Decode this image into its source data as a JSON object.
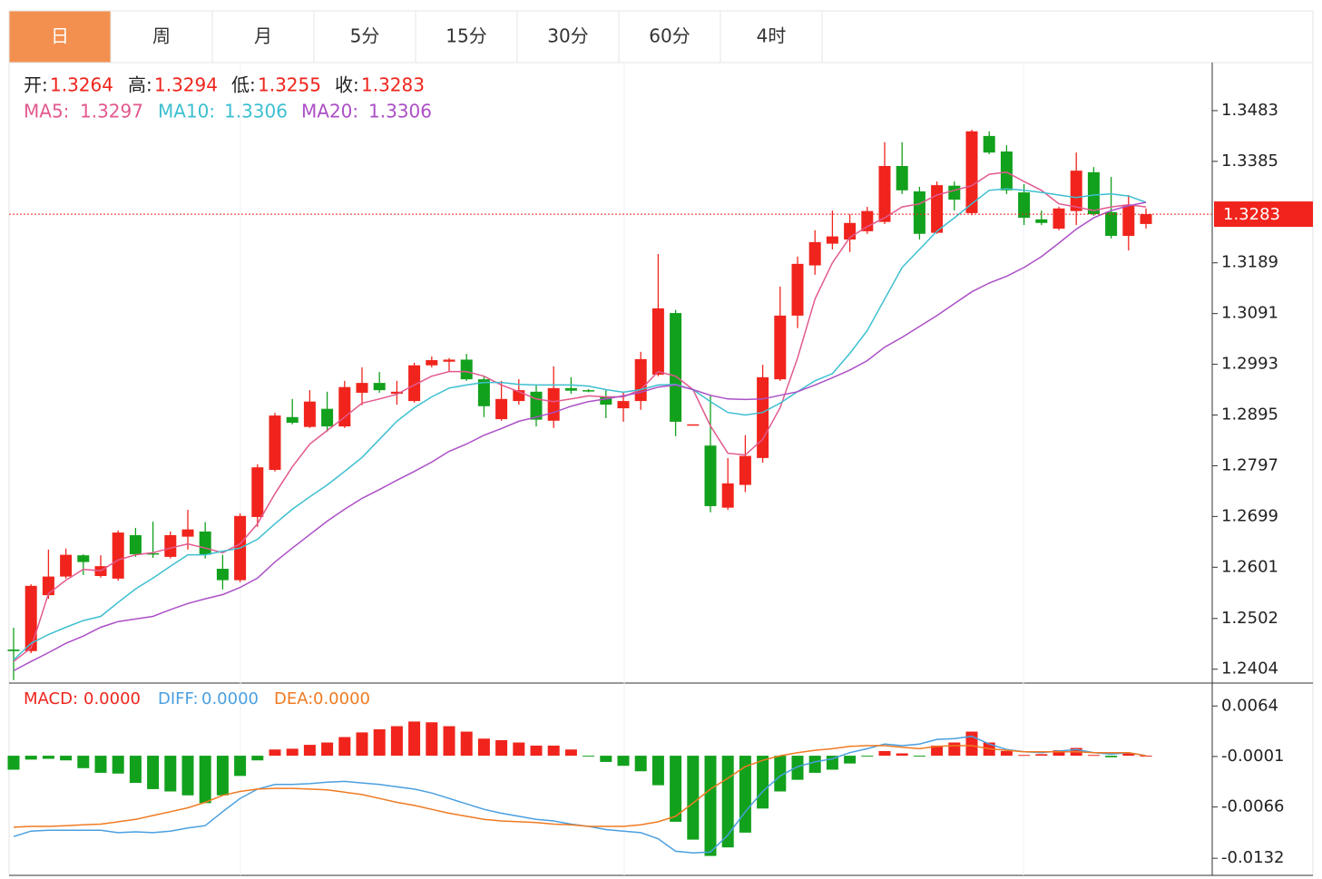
{
  "tabs": {
    "labels": [
      "日",
      "周",
      "月",
      "5分",
      "15分",
      "30分",
      "60分",
      "4时"
    ],
    "active": 0
  },
  "chart_data": [
    {
      "type": "candlestick",
      "open": [
        1.2442,
        1.2439,
        1.2547,
        1.2583,
        1.2624,
        1.2584,
        1.2579,
        1.2663,
        1.2628,
        1.2621,
        1.266,
        1.267,
        1.2598,
        1.2576,
        1.2698,
        1.2789,
        1.2891,
        1.2872,
        1.2907,
        1.2873,
        1.2938,
        1.2957,
        1.2936,
        1.2922,
        1.2991,
        1.2998,
        1.3002,
        1.2964,
        1.2887,
        1.2922,
        1.294,
        1.2884,
        1.2947,
        1.2943,
        1.2931,
        1.2908,
        1.2922,
        1.2973,
        1.3092,
        1.2876,
        1.2836,
        1.2716,
        1.276,
        1.2812,
        1.2964,
        1.3087,
        1.3184,
        1.3226,
        1.3234,
        1.325,
        1.3268,
        1.3376,
        1.3327,
        1.3247,
        1.3338,
        1.3285,
        1.3434,
        1.3404,
        1.3325,
        1.3273,
        1.3255,
        1.3289,
        1.3364,
        1.3287,
        1.3241,
        1.3264
      ],
      "high": [
        1.2484,
        1.2568,
        1.2635,
        1.2637,
        1.2626,
        1.2624,
        1.2672,
        1.2677,
        1.2689,
        1.267,
        1.2712,
        1.2688,
        1.2625,
        1.2705,
        1.28,
        1.2899,
        1.2926,
        1.2943,
        1.294,
        1.2961,
        1.2987,
        1.2978,
        1.2961,
        1.2996,
        1.3008,
        1.3005,
        1.3013,
        1.297,
        1.2961,
        1.2964,
        1.2952,
        1.2989,
        1.2968,
        1.2945,
        1.2943,
        1.294,
        1.3017,
        1.3206,
        1.3098,
        1.2877,
        1.2933,
        1.2812,
        1.2856,
        1.2992,
        1.3143,
        1.3201,
        1.3252,
        1.329,
        1.3283,
        1.3297,
        1.3422,
        1.3422,
        1.3336,
        1.3346,
        1.3346,
        1.3446,
        1.3443,
        1.3416,
        1.3341,
        1.329,
        1.3297,
        1.3402,
        1.3374,
        1.3355,
        1.332,
        1.3294
      ],
      "low": [
        1.2383,
        1.2435,
        1.254,
        1.2579,
        1.2586,
        1.2581,
        1.2575,
        1.2621,
        1.2619,
        1.2618,
        1.2635,
        1.2618,
        1.2558,
        1.2572,
        1.2679,
        1.2786,
        1.2877,
        1.287,
        1.2863,
        1.287,
        1.2914,
        1.2938,
        1.2915,
        1.2919,
        1.2987,
        1.2979,
        1.2961,
        1.2891,
        1.2884,
        1.2915,
        1.2873,
        1.287,
        1.2936,
        1.2939,
        1.2889,
        1.2882,
        1.2905,
        1.297,
        1.2854,
        1.2876,
        1.2707,
        1.2712,
        1.2746,
        1.2803,
        1.2961,
        1.3063,
        1.3166,
        1.3215,
        1.321,
        1.3245,
        1.3264,
        1.3322,
        1.3234,
        1.3245,
        1.329,
        1.3281,
        1.3399,
        1.3322,
        1.3262,
        1.3262,
        1.3252,
        1.3262,
        1.328,
        1.3236,
        1.3213,
        1.3255
      ],
      "close": [
        1.2439,
        1.2565,
        1.2583,
        1.2625,
        1.2611,
        1.2603,
        1.2668,
        1.2626,
        1.2626,
        1.2663,
        1.2674,
        1.2625,
        1.2576,
        1.27,
        1.2794,
        1.2894,
        1.288,
        1.2921,
        1.2873,
        1.2949,
        1.2957,
        1.2943,
        1.294,
        1.2991,
        1.3001,
        1.3002,
        1.2964,
        1.2912,
        1.2926,
        1.2943,
        1.2886,
        1.2947,
        1.2942,
        1.2941,
        1.2915,
        1.2922,
        1.3003,
        1.3101,
        1.2882,
        1.2877,
        1.2719,
        1.2763,
        1.2816,
        1.2968,
        1.3087,
        1.3187,
        1.3229,
        1.324,
        1.3266,
        1.3289,
        1.3376,
        1.3329,
        1.3245,
        1.3339,
        1.3311,
        1.3443,
        1.3402,
        1.3329,
        1.3276,
        1.3266,
        1.3294,
        1.3367,
        1.3283,
        1.3241,
        1.3301,
        1.3283
      ],
      "up_color": "#f0241c",
      "down_color": "#12a11d",
      "legend": [
        "开:",
        "高:",
        "低:",
        "收:"
      ],
      "series": [
        {
          "name": "MA5:",
          "color": "#e2598f",
          "values": [
            1.2419,
            1.2445,
            1.255,
            1.2576,
            1.2597,
            1.2594,
            1.2615,
            1.2625,
            1.2629,
            1.2638,
            1.2646,
            1.2638,
            1.2629,
            1.2646,
            1.2685,
            1.2743,
            1.2795,
            1.2839,
            1.2865,
            1.2891,
            1.2918,
            1.2926,
            1.2935,
            1.2953,
            1.297,
            1.2979,
            1.2979,
            1.297,
            1.2953,
            1.294,
            1.2926,
            1.2921,
            1.2926,
            1.2932,
            1.293,
            1.293,
            1.2944,
            1.2979,
            1.297,
            1.2944,
            1.2874,
            1.2821,
            1.2818,
            1.2848,
            1.2909,
            1.3005,
            1.3119,
            1.3189,
            1.3238,
            1.3259,
            1.3276,
            1.3297,
            1.3303,
            1.332,
            1.3329,
            1.3338,
            1.336,
            1.3364,
            1.3346,
            1.3329,
            1.3303,
            1.3297,
            1.329,
            1.3297,
            1.3301,
            1.3297
          ]
        },
        {
          "name": "MA10:",
          "color": "#3dbfd0",
          "values": [
            1.2422,
            1.2454,
            1.2471,
            1.2485,
            1.2498,
            1.2506,
            1.2533,
            1.2559,
            1.258,
            1.2603,
            1.2625,
            1.2625,
            1.2632,
            1.2638,
            1.2655,
            1.2685,
            1.2713,
            1.2737,
            1.276,
            1.2786,
            1.2813,
            1.2848,
            1.2883,
            1.2909,
            1.293,
            1.2947,
            1.2953,
            1.2958,
            1.2958,
            1.2954,
            1.2953,
            1.2953,
            1.2953,
            1.2951,
            1.2944,
            1.2939,
            1.2944,
            1.2953,
            1.2954,
            1.2944,
            1.2921,
            1.29,
            1.2895,
            1.29,
            1.2918,
            1.294,
            1.2961,
            1.2975,
            1.3014,
            1.3058,
            1.3119,
            1.318,
            1.3215,
            1.325,
            1.3276,
            1.3303,
            1.3329,
            1.3332,
            1.3329,
            1.3325,
            1.332,
            1.3315,
            1.332,
            1.3322,
            1.3318,
            1.3306
          ]
        },
        {
          "name": "MA20:",
          "color": "#ac4fc6",
          "values": [
            1.2401,
            1.2419,
            1.2436,
            1.2454,
            1.2468,
            1.2485,
            1.2496,
            1.2501,
            1.2506,
            1.2519,
            1.2531,
            1.254,
            1.2548,
            1.2562,
            1.258,
            1.2611,
            1.2638,
            1.2664,
            1.269,
            1.2713,
            1.2734,
            1.2751,
            1.2769,
            1.2786,
            1.2804,
            1.2825,
            1.2839,
            1.2856,
            1.2869,
            1.2883,
            1.2891,
            1.29,
            1.2912,
            1.2921,
            1.2926,
            1.2932,
            1.2939,
            1.2949,
            1.2953,
            1.2944,
            1.2933,
            1.2926,
            1.2925,
            1.2926,
            1.2933,
            1.294,
            1.2953,
            1.2967,
            1.2982,
            1.3,
            1.3026,
            1.3045,
            1.3066,
            1.3087,
            1.311,
            1.3133,
            1.315,
            1.3163,
            1.318,
            1.3201,
            1.3227,
            1.3254,
            1.3276,
            1.329,
            1.3299,
            1.3306
          ]
        }
      ],
      "ylim": [
        1.2379,
        1.3574
      ],
      "yticks": [
        1.3483,
        1.3385,
        1.3189,
        1.3091,
        1.2993,
        1.2895,
        1.2797,
        1.2699,
        1.2601,
        1.2502,
        1.2404
      ]
    },
    {
      "type": "macd",
      "name": "MACD:",
      "values": [
        -0.0018,
        -0.0005,
        -0.0004,
        -0.0006,
        -0.0016,
        -0.0022,
        -0.0023,
        -0.0035,
        -0.0043,
        -0.0046,
        -0.0051,
        -0.0061,
        -0.0051,
        -0.0026,
        -0.0006,
        0.0008,
        0.0009,
        0.0014,
        0.0017,
        0.0024,
        0.003,
        0.0034,
        0.0038,
        0.0044,
        0.0043,
        0.0038,
        0.0031,
        0.0022,
        0.002,
        0.0017,
        0.0013,
        0.0013,
        0.0008,
        -0.0001,
        -0.0008,
        -0.0013,
        -0.002,
        -0.0038,
        -0.0085,
        -0.0108,
        -0.0129,
        -0.0118,
        -0.0099,
        -0.0068,
        -0.0046,
        -0.0031,
        -0.0022,
        -0.0018,
        -0.001,
        -0.0001,
        0.0006,
        0.0003,
        -0.0001,
        0.0013,
        0.0017,
        0.0031,
        0.0017,
        0.0006,
        0.0001,
        0.0002,
        0.0007,
        0.001,
        0.0001,
        -0.0002,
        0.0003,
        0
      ],
      "up_color": "#f0241c",
      "down_color": "#12a11d",
      "series": [
        {
          "name": "DIFF:",
          "color": "#4a9fe0",
          "values": [
            -0.0104,
            -0.0097,
            -0.0096,
            -0.0096,
            -0.0096,
            -0.0096,
            -0.0099,
            -0.0098,
            -0.0099,
            -0.0097,
            -0.0093,
            -0.009,
            -0.0072,
            -0.0055,
            -0.0043,
            -0.0037,
            -0.0037,
            -0.0036,
            -0.0034,
            -0.0033,
            -0.0035,
            -0.0037,
            -0.004,
            -0.0043,
            -0.0048,
            -0.0055,
            -0.0062,
            -0.0069,
            -0.0074,
            -0.0078,
            -0.0082,
            -0.0084,
            -0.0088,
            -0.0091,
            -0.0095,
            -0.0097,
            -0.0099,
            -0.0107,
            -0.0123,
            -0.0125,
            -0.0124,
            -0.0102,
            -0.0072,
            -0.0046,
            -0.0026,
            -0.0014,
            -0.0008,
            -0.0004,
            0.0004,
            0.0009,
            0.0015,
            0.0013,
            0.0015,
            0.0021,
            0.0022,
            0.0025,
            0.0015,
            0.0008,
            0.0005,
            0.0004,
            0.0006,
            0.0008,
            0.0004,
            0.0002,
            0.0004,
            0
          ]
        },
        {
          "name": "DEA:",
          "color": "#f07a22",
          "values": [
            -0.0092,
            -0.0091,
            -0.0091,
            -0.009,
            -0.0089,
            -0.0088,
            -0.0085,
            -0.0082,
            -0.0077,
            -0.0072,
            -0.0067,
            -0.006,
            -0.0051,
            -0.0046,
            -0.0043,
            -0.0042,
            -0.0042,
            -0.0043,
            -0.0044,
            -0.0047,
            -0.005,
            -0.0055,
            -0.006,
            -0.0064,
            -0.0069,
            -0.0074,
            -0.0078,
            -0.0082,
            -0.0084,
            -0.0085,
            -0.0086,
            -0.0088,
            -0.0089,
            -0.0091,
            -0.0091,
            -0.0091,
            -0.0089,
            -0.0085,
            -0.0078,
            -0.0061,
            -0.0043,
            -0.0029,
            -0.0014,
            -0.0006,
            0,
            0.0004,
            0.0007,
            0.0009,
            0.0012,
            0.0013,
            0.0013,
            0.0011,
            0.0009,
            0.0012,
            0.0013,
            0.0013,
            0.0009,
            0.0007,
            0.0005,
            0.0005,
            0.0005,
            0.0005,
            0.0004,
            0.0004,
            0.0004,
            0
          ]
        }
      ],
      "current": [
        {
          "value": 0,
          "label": "0.0000"
        },
        {
          "value": 0,
          "label": "0.0000"
        },
        {
          "value": 0,
          "label": "0.0000"
        }
      ],
      "ylim": [
        -0.0154,
        0.009
      ],
      "yticks": [
        0.0064,
        -0.0001,
        -0.0066,
        -0.0132
      ]
    }
  ]
}
